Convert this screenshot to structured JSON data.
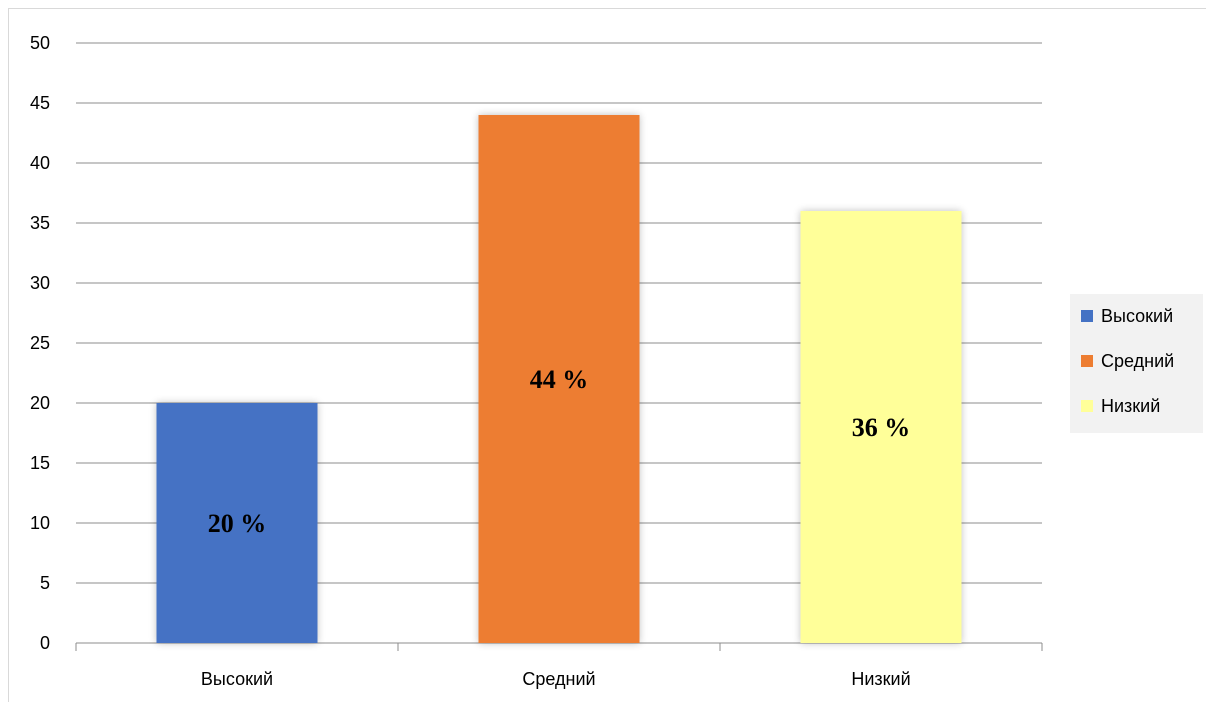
{
  "chart_data": {
    "type": "bar",
    "categories": [
      "Высокий",
      "Средний",
      "Низкий"
    ],
    "values": [
      20,
      44,
      36
    ],
    "data_labels": [
      "20 %",
      "44 %",
      "36 %"
    ],
    "colors": [
      "#4472c4",
      "#ed7d31",
      "#ffff99"
    ],
    "ylim": [
      0,
      50
    ],
    "y_ticks": [
      0,
      5,
      10,
      15,
      20,
      25,
      30,
      35,
      40,
      45,
      50
    ],
    "grid": true,
    "legend": {
      "position": "right",
      "entries": [
        "Высокий",
        "Средний",
        "Низкий"
      ]
    },
    "title": "",
    "xlabel": "",
    "ylabel": ""
  }
}
